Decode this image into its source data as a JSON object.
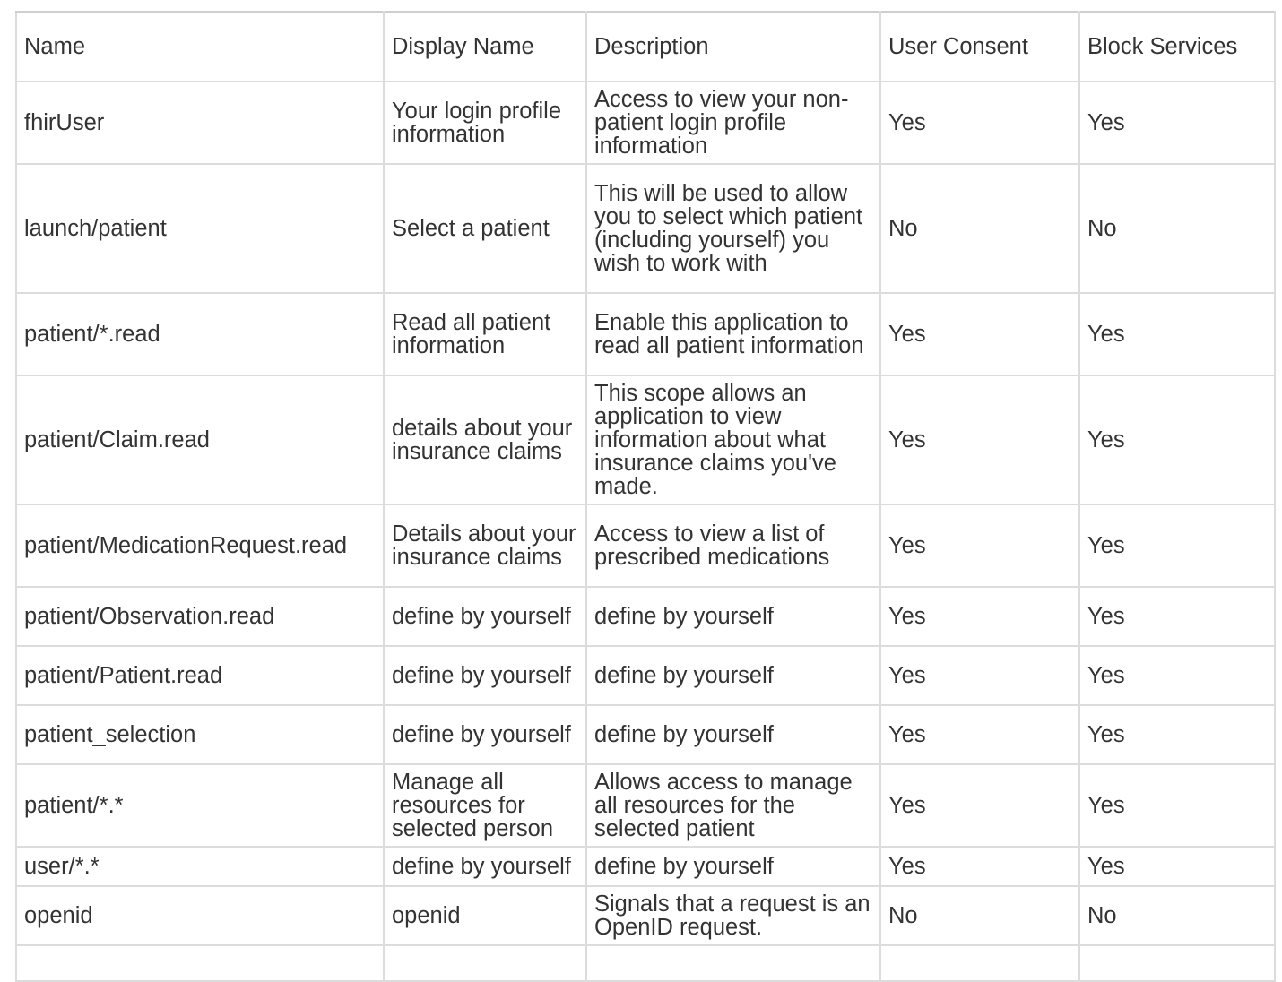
{
  "table": {
    "headers": [
      "Name",
      "Display Name",
      "Description",
      "User Consent",
      "Block Services"
    ],
    "rows": [
      {
        "name": "fhirUser",
        "display_name": "Your login profile information",
        "description": "Access to view your non-patient login profile information",
        "user_consent": "Yes",
        "block_services": "Yes"
      },
      {
        "name": "launch/patient",
        "display_name": "Select a patient",
        "description": "This will be used to allow you to select which patient (including yourself) you wish to work with",
        "user_consent": "No",
        "block_services": "No"
      },
      {
        "name": "patient/*.read",
        "display_name": "Read all patient information",
        "description": "Enable this application to read all patient information",
        "user_consent": "Yes",
        "block_services": "Yes"
      },
      {
        "name": "patient/Claim.read",
        "display_name": "details about your insurance claims",
        "description": "This scope allows an application to view information about what insurance claims you've made.",
        "user_consent": "Yes",
        "block_services": "Yes"
      },
      {
        "name": "patient/MedicationRequest.read",
        "display_name": "Details about your insurance claims",
        "description": "Access to view a list of prescribed medications",
        "user_consent": "Yes",
        "block_services": "Yes"
      },
      {
        "name": "patient/Observation.read",
        "display_name": "define by yourself",
        "description": "define by yourself",
        "user_consent": "Yes",
        "block_services": "Yes"
      },
      {
        "name": "patient/Patient.read",
        "display_name": "define by yourself",
        "description": "define by yourself",
        "user_consent": "Yes",
        "block_services": "Yes"
      },
      {
        "name": "patient_selection",
        "display_name": "define by yourself",
        "description": "define by yourself",
        "user_consent": "Yes",
        "block_services": "Yes"
      },
      {
        "name": "patient/*.*",
        "display_name": "Manage all resources for selected person",
        "description": "Allows access to manage all resources for the selected patient",
        "user_consent": "Yes",
        "block_services": "Yes"
      },
      {
        "name": "user/*.*",
        "display_name": "define by yourself",
        "description": "define by yourself",
        "user_consent": "Yes",
        "block_services": "Yes"
      },
      {
        "name": "openid",
        "display_name": "openid",
        "description": "Signals that a request is an OpenID request.",
        "user_consent": "No",
        "block_services": "No"
      },
      {
        "name": "",
        "display_name": "",
        "description": "",
        "user_consent": "",
        "block_services": ""
      }
    ]
  }
}
